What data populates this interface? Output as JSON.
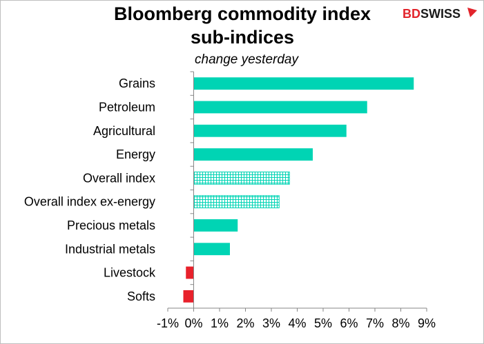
{
  "brand": {
    "part1": "BD",
    "part2": "SWISS",
    "color1": "#e2242b",
    "color2": "#1a1a1a"
  },
  "colors": {
    "positive": "#00d4b4",
    "negative": "#e8212b",
    "hatch": "#00d4b4",
    "axis": "#868686"
  },
  "chart_data": {
    "type": "bar",
    "orientation": "horizontal",
    "title_line1": "Bloomberg commodity index",
    "title_line2": "sub-indices",
    "subtitle": "change yesterday",
    "categories": [
      "Grains",
      "Petroleum",
      "Agricultural",
      "Energy",
      "Overall index",
      "Overall index ex-energy",
      "Precious metals",
      "Industrial metals",
      "Livestock",
      "Softs"
    ],
    "values": [
      8.5,
      6.7,
      5.9,
      4.6,
      3.7,
      3.3,
      1.7,
      1.4,
      -0.3,
      -0.4
    ],
    "hatched": [
      false,
      false,
      false,
      false,
      true,
      true,
      false,
      false,
      false,
      false
    ],
    "xlim": [
      -1,
      9
    ],
    "ticks": [
      -1,
      0,
      1,
      2,
      3,
      4,
      5,
      6,
      7,
      8,
      9
    ],
    "tick_labels": [
      "-1%",
      "0%",
      "1%",
      "2%",
      "3%",
      "4%",
      "5%",
      "6%",
      "7%",
      "8%",
      "9%"
    ],
    "grid": false,
    "legend": "none"
  }
}
